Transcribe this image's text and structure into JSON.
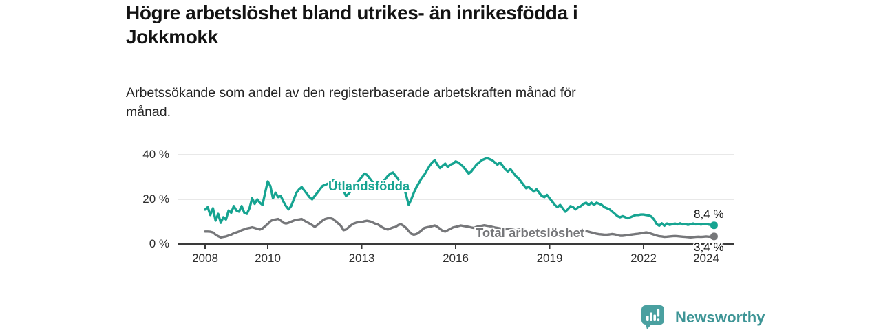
{
  "title": {
    "line1": "Högre arbetslöshet bland utrikes- än inrikesfödda i",
    "line2": "Jokkmokk"
  },
  "subtitle": {
    "line1": "Arbetssökande som andel av den registerbaserade arbetskraften månad för",
    "line2": "månad."
  },
  "footer": {
    "brand": "Newsworthy",
    "brand_color": "#3e9596",
    "icon_color": "#4aa0a0"
  },
  "chart_data": {
    "type": "line",
    "title": "Högre arbetslöshet bland utrikes- än inrikesfödda i Jokkmokk",
    "subtitle": "Arbetssökande som andel av den registerbaserade arbetskraften månad för månad.",
    "x_unit": "month",
    "x_start": 2008.0,
    "x_end": 2024.25,
    "x_ticks": [
      2008,
      2010,
      2013,
      2016,
      2019,
      2022,
      2024
    ],
    "y_ticks": [
      {
        "value": 0,
        "label": "0 %"
      },
      {
        "value": 20,
        "label": "20 %"
      },
      {
        "value": 40,
        "label": "40 %"
      }
    ],
    "ylim": [
      0,
      44
    ],
    "grid": "horizontal",
    "axis_color": "#3a3a3a",
    "grid_color": "#e1e1e1",
    "series": [
      {
        "name": "Utlandsfödda",
        "color": "#16a491",
        "end_label": "8,4 %",
        "end_value": 8.4,
        "values": [
          15.4,
          16.5,
          13,
          16,
          10.5,
          13.5,
          9.5,
          12,
          11,
          15,
          14,
          17,
          15,
          14.5,
          17,
          14,
          13.5,
          16,
          20.5,
          18,
          20,
          18.5,
          17.5,
          23,
          28,
          26,
          20.5,
          23,
          21,
          21.5,
          19,
          17,
          15.5,
          17,
          20,
          23,
          24.5,
          25.5,
          24,
          22.5,
          21,
          20,
          21.5,
          23,
          24.5,
          26,
          26.5,
          27,
          27.5,
          28.5,
          28,
          27,
          25.5,
          24,
          21.5,
          22.5,
          24,
          25.5,
          27,
          28.5,
          30,
          31.5,
          31,
          29.5,
          28,
          26.5,
          25,
          26,
          27.5,
          29,
          30.5,
          31.5,
          32,
          30.5,
          29,
          27.5,
          26,
          22,
          17.5,
          20,
          23,
          25.5,
          27.5,
          29.5,
          31,
          33,
          35,
          36.5,
          37.5,
          35.5,
          34,
          35,
          36,
          34.5,
          35.5,
          36,
          37,
          36.5,
          35.5,
          34.5,
          33,
          31.5,
          32.5,
          34,
          35.5,
          36.5,
          37.5,
          38,
          38.5,
          38,
          37.5,
          36.5,
          35.5,
          36.5,
          35,
          33.5,
          32.5,
          33.5,
          32,
          30.5,
          29.5,
          28,
          26.5,
          25,
          25.5,
          24.5,
          23.5,
          24.5,
          23,
          21.5,
          21,
          22,
          20.5,
          19,
          17.5,
          16.5,
          17.5,
          16,
          14.5,
          15.5,
          17,
          16.5,
          15.5,
          16.5,
          17,
          18,
          18.5,
          17.5,
          18.5,
          17.5,
          18.5,
          18,
          17.5,
          16.5,
          16,
          15.5,
          14.5,
          13.5,
          12.5,
          12,
          12.5,
          12,
          11.5,
          12,
          12.5,
          13,
          13,
          13.2,
          13.2,
          13,
          12.8,
          12.3,
          11,
          9,
          8.2,
          9.3,
          8.2,
          9.2,
          8.6,
          8.9,
          9.2,
          8.8,
          9.3,
          8.8,
          9,
          8.6,
          8.9,
          9.2,
          8.8,
          9,
          8.7,
          9,
          9,
          8.7,
          8.5,
          8.4
        ]
      },
      {
        "name": "Total arbetslöshet",
        "color": "#76777a",
        "end_label": "3,4 %",
        "end_value": 3.4,
        "values": [
          5.6,
          5.6,
          5.5,
          5.2,
          4.2,
          3.5,
          3,
          3.2,
          3.4,
          3.8,
          4.2,
          4.8,
          5.2,
          5.6,
          6.2,
          6.6,
          7,
          7.2,
          7.5,
          7.2,
          6.8,
          6.5,
          7,
          8,
          9,
          10.2,
          10.8,
          11,
          11.2,
          10.5,
          9.5,
          9.2,
          9.5,
          10,
          10.5,
          10.8,
          11,
          11.2,
          10.5,
          9.8,
          9.2,
          8.5,
          7.7,
          8.5,
          9.5,
          10.5,
          11.2,
          11.5,
          11.6,
          11.2,
          10.2,
          9.2,
          8.2,
          6.2,
          6.5,
          7.5,
          8.5,
          9.2,
          9.6,
          9.8,
          9.8,
          10.2,
          10.4,
          10.2,
          9.8,
          9.2,
          8.9,
          8.2,
          7.4,
          6.8,
          6.5,
          7,
          7.4,
          7.7,
          8.5,
          8.9,
          8.2,
          7.2,
          5.8,
          4.6,
          4.2,
          4.5,
          5.2,
          6.2,
          7.2,
          7.5,
          7.7,
          8,
          8.3,
          7.7,
          6.8,
          5.9,
          5.6,
          6.2,
          6.8,
          7.4,
          7.7,
          8,
          8.3,
          8.1,
          7.9,
          7.7,
          7.4,
          7.2,
          7.7,
          8,
          8.2,
          8.4,
          8.2,
          8,
          7.7,
          7.4,
          7.2,
          7,
          6.8,
          6.6,
          6.8,
          6.6,
          6.4,
          6.2,
          6.4,
          6.6,
          6.4,
          6.2,
          5.9,
          5.6,
          5.3,
          5.5,
          5.8,
          5.5,
          5.2,
          5.5,
          5.8,
          5.5,
          5.2,
          4.9,
          5.2,
          4.9,
          4.6,
          4.9,
          5.2,
          4.9,
          4.6,
          4.9,
          5.2,
          5.5,
          5.8,
          5.5,
          5.2,
          4.9,
          4.6,
          4.4,
          4.3,
          4.2,
          4.2,
          4.3,
          4.5,
          4.3,
          4,
          3.7,
          3.7,
          3.8,
          4,
          4.2,
          4.3,
          4.5,
          4.6,
          4.8,
          5,
          5.2,
          5,
          4.6,
          4.2,
          3.8,
          3.5,
          3.4,
          3.2,
          3.3,
          3.4,
          3.5,
          3.6,
          3.5,
          3.4,
          3.3,
          3.2,
          3.1,
          3,
          3.1,
          3.2,
          3.3,
          3.2,
          3.3,
          3.4,
          3.3,
          3.3,
          3.4
        ]
      }
    ]
  }
}
